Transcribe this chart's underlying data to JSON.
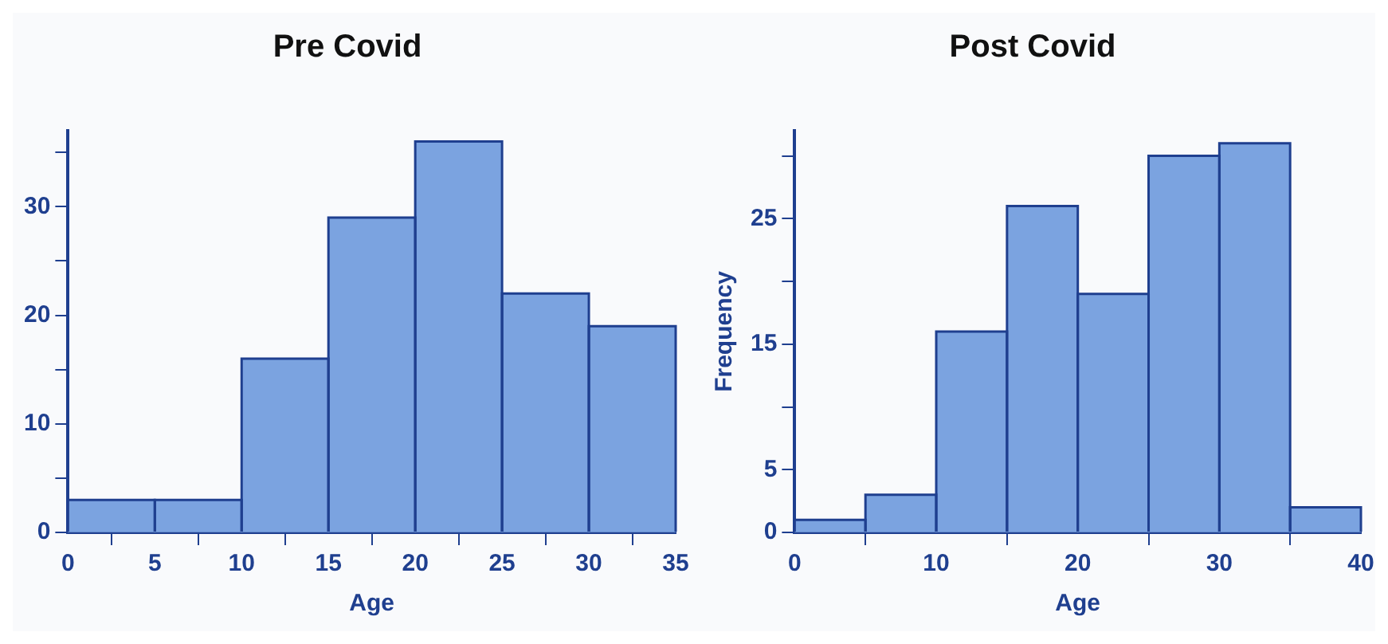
{
  "chart_data": [
    {
      "type": "histogram",
      "title": "Pre Covid",
      "xlabel": "Age",
      "color": "#7ba3e0",
      "bins": [
        0,
        5,
        10,
        15,
        20,
        25,
        30,
        35
      ],
      "values": [
        3,
        3,
        16,
        29,
        36,
        22,
        19
      ],
      "xlim": [
        0,
        35
      ],
      "xticks": [
        0,
        5,
        10,
        15,
        20,
        25,
        30,
        35
      ],
      "ylim": [
        0,
        37
      ],
      "yticks": [
        0,
        {
          "value": 5,
          "label": null
        },
        10,
        {
          "value": 15,
          "label": null
        },
        20,
        {
          "value": 25,
          "label": null
        },
        30,
        {
          "value": 35,
          "label": null
        }
      ],
      "grid": false,
      "legend": false
    },
    {
      "type": "histogram",
      "title": "Post Covid",
      "xlabel": "Age",
      "ylabel": "Frequency",
      "color": "#7ba3e0",
      "bins": [
        0,
        5,
        10,
        15,
        20,
        25,
        30,
        35,
        40
      ],
      "values": [
        1,
        3,
        16,
        26,
        19,
        30,
        31,
        2
      ],
      "xlim": [
        0,
        40
      ],
      "xticks": [
        0,
        10,
        20,
        30,
        40
      ],
      "ylim": [
        0,
        32
      ],
      "yticks": [
        0,
        5,
        {
          "value": 10,
          "label": null
        },
        15,
        {
          "value": 20,
          "label": null
        },
        25,
        {
          "value": 30,
          "label": null
        }
      ],
      "grid": false,
      "legend": false
    }
  ]
}
